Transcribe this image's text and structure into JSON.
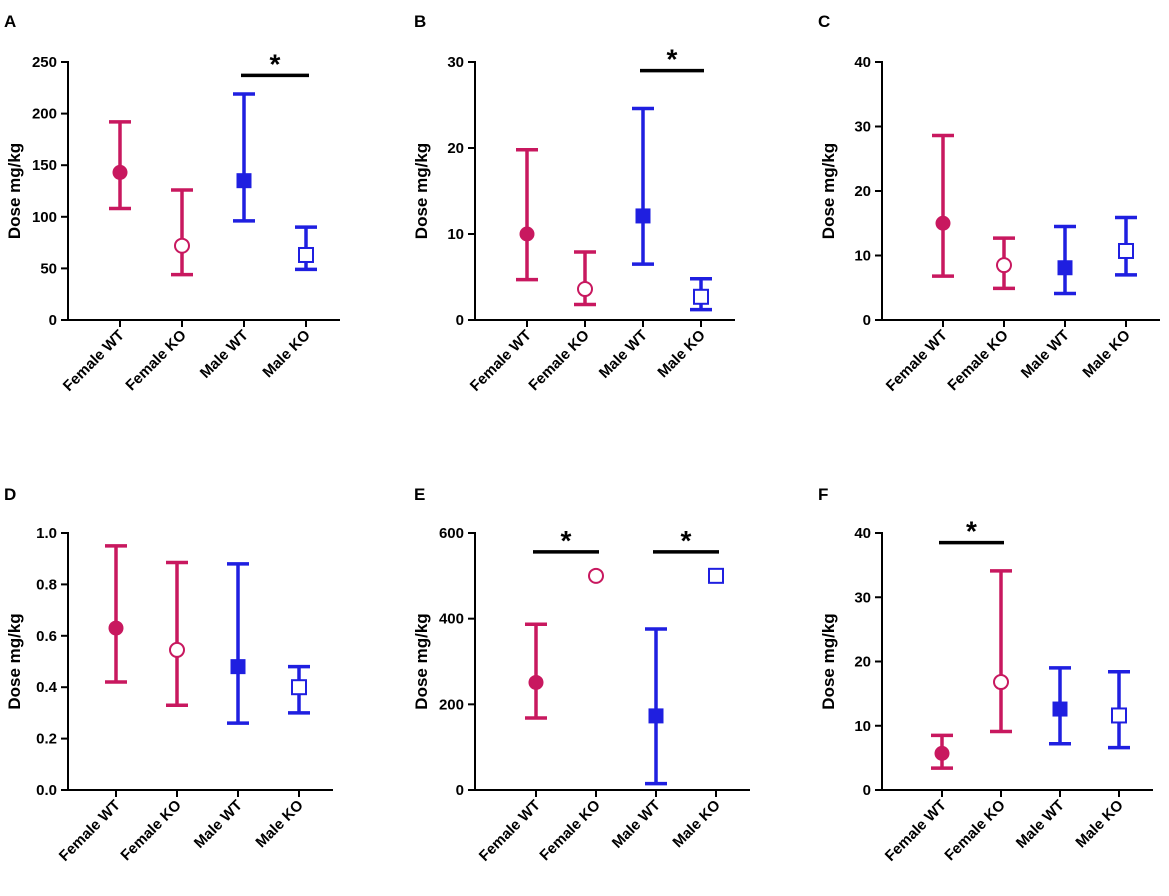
{
  "colors": {
    "female": "#c8185f",
    "male": "#1f1fe0"
  },
  "chart_data": [
    {
      "panel": "A",
      "type": "scatter",
      "ylabel": "Dose mg/kg",
      "ylim": [
        0,
        250
      ],
      "yticks": [
        "0",
        "50",
        "100",
        "150",
        "200",
        "250"
      ],
      "categories": [
        "Female WT",
        "Female KO",
        "Male WT",
        "Male KO"
      ],
      "points": [
        {
          "category": "Female WT",
          "value": 143,
          "low": 108,
          "high": 192,
          "marker": "circle-filled",
          "color": "female"
        },
        {
          "category": "Female KO",
          "value": 72,
          "low": 44,
          "high": 126,
          "marker": "circle-open",
          "color": "female"
        },
        {
          "category": "Male WT",
          "value": 135,
          "low": 96,
          "high": 219,
          "marker": "square-filled",
          "color": "male"
        },
        {
          "category": "Male KO",
          "value": 63,
          "low": 49,
          "high": 90,
          "marker": "square-open",
          "color": "male"
        }
      ],
      "significance": [
        {
          "from": 2,
          "to": 3,
          "label": "*",
          "y": 237
        }
      ]
    },
    {
      "panel": "B",
      "type": "scatter",
      "ylabel": "Dose mg/kg",
      "ylim": [
        0,
        30
      ],
      "yticks": [
        "0",
        "10",
        "20",
        "30"
      ],
      "categories": [
        "Female WT",
        "Female KO",
        "Male WT",
        "Male KO"
      ],
      "points": [
        {
          "category": "Female WT",
          "value": 10,
          "low": 4.7,
          "high": 19.8,
          "marker": "circle-filled",
          "color": "female"
        },
        {
          "category": "Female KO",
          "value": 3.6,
          "low": 1.8,
          "high": 7.9,
          "marker": "circle-open",
          "color": "female"
        },
        {
          "category": "Male WT",
          "value": 12.1,
          "low": 6.5,
          "high": 24.6,
          "marker": "square-filled",
          "color": "male"
        },
        {
          "category": "Male KO",
          "value": 2.7,
          "low": 1.2,
          "high": 4.8,
          "marker": "square-open",
          "color": "male"
        }
      ],
      "significance": [
        {
          "from": 2,
          "to": 3,
          "label": "*",
          "y": 29
        }
      ]
    },
    {
      "panel": "C",
      "type": "scatter",
      "ylabel": "Dose mg/kg",
      "ylim": [
        0,
        40
      ],
      "yticks": [
        "0",
        "10",
        "20",
        "30",
        "40"
      ],
      "categories": [
        "Female WT",
        "Female KO",
        "Male WT",
        "Male KO"
      ],
      "points": [
        {
          "category": "Female WT",
          "value": 15,
          "low": 6.8,
          "high": 28.6,
          "marker": "circle-filled",
          "color": "female"
        },
        {
          "category": "Female KO",
          "value": 8.5,
          "low": 4.9,
          "high": 12.7,
          "marker": "circle-open",
          "color": "female"
        },
        {
          "category": "Male WT",
          "value": 8.1,
          "low": 4.1,
          "high": 14.5,
          "marker": "square-filled",
          "color": "male"
        },
        {
          "category": "Male KO",
          "value": 10.7,
          "low": 7,
          "high": 15.9,
          "marker": "square-open",
          "color": "male"
        }
      ],
      "significance": []
    },
    {
      "panel": "D",
      "type": "scatter",
      "ylabel": "Dose mg/kg",
      "ylim": [
        0,
        1
      ],
      "yticks": [
        "0.0",
        "0.2",
        "0.4",
        "0.6",
        "0.8",
        "1.0"
      ],
      "categories": [
        "Female WT",
        "Female KO",
        "Male WT",
        "Male KO"
      ],
      "points": [
        {
          "category": "Female WT",
          "value": 0.63,
          "low": 0.42,
          "high": 0.95,
          "marker": "circle-filled",
          "color": "female"
        },
        {
          "category": "Female KO",
          "value": 0.545,
          "low": 0.33,
          "high": 0.885,
          "marker": "circle-open",
          "color": "female"
        },
        {
          "category": "Male WT",
          "value": 0.48,
          "low": 0.26,
          "high": 0.88,
          "marker": "square-filled",
          "color": "male"
        },
        {
          "category": "Male KO",
          "value": 0.4,
          "low": 0.3,
          "high": 0.48,
          "marker": "square-open",
          "color": "male"
        }
      ],
      "significance": []
    },
    {
      "panel": "E",
      "type": "scatter",
      "ylabel": "Dose mg/kg",
      "ylim": [
        0,
        600
      ],
      "yticks": [
        "0",
        "200",
        "400",
        "600"
      ],
      "categories": [
        "Female WT",
        "Female KO",
        "Male WT",
        "Male KO"
      ],
      "points": [
        {
          "category": "Female WT",
          "value": 251,
          "low": 168,
          "high": 387,
          "marker": "circle-filled",
          "color": "female"
        },
        {
          "category": "Female KO",
          "value": 500,
          "marker": "circle-open",
          "color": "female"
        },
        {
          "category": "Male WT",
          "value": 173,
          "low": 15,
          "high": 376,
          "marker": "square-filled",
          "color": "male"
        },
        {
          "category": "Male KO",
          "value": 500,
          "marker": "square-open",
          "color": "male"
        }
      ],
      "significance": [
        {
          "from": 0,
          "to": 1,
          "label": "*",
          "y": 556
        },
        {
          "from": 2,
          "to": 3,
          "label": "*",
          "y": 556
        }
      ]
    },
    {
      "panel": "F",
      "type": "scatter",
      "ylabel": "Dose mg/kg",
      "ylim": [
        0,
        40
      ],
      "yticks": [
        "0",
        "10",
        "20",
        "30",
        "40"
      ],
      "categories": [
        "Female WT",
        "Female KO",
        "Male WT",
        "Male KO"
      ],
      "points": [
        {
          "category": "Female WT",
          "value": 5.7,
          "low": 3.4,
          "high": 8.5,
          "marker": "circle-filled",
          "color": "female"
        },
        {
          "category": "Female KO",
          "value": 16.8,
          "low": 9.1,
          "high": 34.1,
          "marker": "circle-open",
          "color": "female"
        },
        {
          "category": "Male WT",
          "value": 12.6,
          "low": 7.2,
          "high": 19,
          "marker": "square-filled",
          "color": "male"
        },
        {
          "category": "Male KO",
          "value": 11.6,
          "low": 6.6,
          "high": 18.4,
          "marker": "square-open",
          "color": "male"
        }
      ],
      "significance": [
        {
          "from": 0,
          "to": 1,
          "label": "*",
          "y": 38.5
        }
      ]
    }
  ]
}
